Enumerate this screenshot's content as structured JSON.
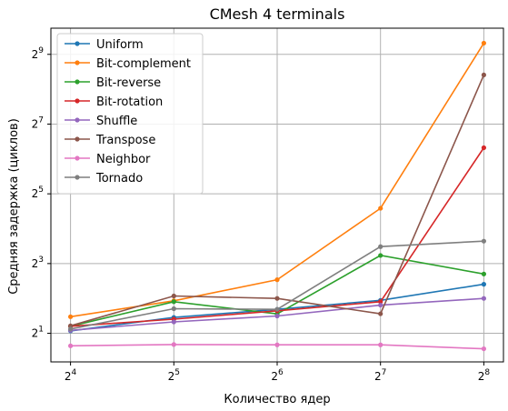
{
  "chart_data": {
    "type": "line",
    "title": "CMesh 4 terminals",
    "xlabel": "Количество ядер",
    "ylabel": "Средняя задержка (циклов)",
    "x": [
      4,
      5,
      6,
      7,
      8
    ],
    "x_scale": "log2",
    "x_ticks": [
      {
        "base": "2",
        "exp": "4"
      },
      {
        "base": "2",
        "exp": "5"
      },
      {
        "base": "2",
        "exp": "6"
      },
      {
        "base": "2",
        "exp": "7"
      },
      {
        "base": "2",
        "exp": "8"
      }
    ],
    "y_scale": "log2",
    "ylim_exp": [
      0.18,
      9.75
    ],
    "y_ticks": [
      {
        "base": "2",
        "exp": "1"
      },
      {
        "base": "2",
        "exp": "3"
      },
      {
        "base": "2",
        "exp": "5"
      },
      {
        "base": "2",
        "exp": "7"
      },
      {
        "base": "2",
        "exp": "9"
      }
    ],
    "grid": true,
    "legend_position": "upper-left",
    "series": [
      {
        "name": "Uniform",
        "color": "#1f77b4",
        "values": [
          2.1,
          2.74,
          3.22,
          3.85,
          5.3
        ]
      },
      {
        "name": "Bit-complement",
        "color": "#ff7f0e",
        "values": [
          2.78,
          3.82,
          5.8,
          24,
          640
        ]
      },
      {
        "name": "Bit-reverse",
        "color": "#2ca02c",
        "values": [
          2.3,
          3.75,
          2.94,
          9.4,
          6.5
        ]
      },
      {
        "name": "Bit-rotation",
        "color": "#d62728",
        "values": [
          2.3,
          2.65,
          3.13,
          3.75,
          80
        ]
      },
      {
        "name": "Shuffle",
        "color": "#9467bd",
        "values": [
          2.12,
          2.51,
          2.82,
          3.5,
          4.0
        ]
      },
      {
        "name": "Transpose",
        "color": "#8c564b",
        "values": [
          2.32,
          4.2,
          4.0,
          2.95,
          340
        ]
      },
      {
        "name": "Neighbor",
        "color": "#e377c2",
        "values": [
          1.56,
          1.6,
          1.59,
          1.59,
          1.47
        ]
      },
      {
        "name": "Tornado",
        "color": "#7f7f7f",
        "values": [
          2.18,
          3.26,
          3.22,
          11.2,
          12.5
        ]
      }
    ],
    "colors": {
      "grid": "#b0b0b0",
      "axis": "#000000",
      "legend_border": "#cccccc"
    }
  }
}
